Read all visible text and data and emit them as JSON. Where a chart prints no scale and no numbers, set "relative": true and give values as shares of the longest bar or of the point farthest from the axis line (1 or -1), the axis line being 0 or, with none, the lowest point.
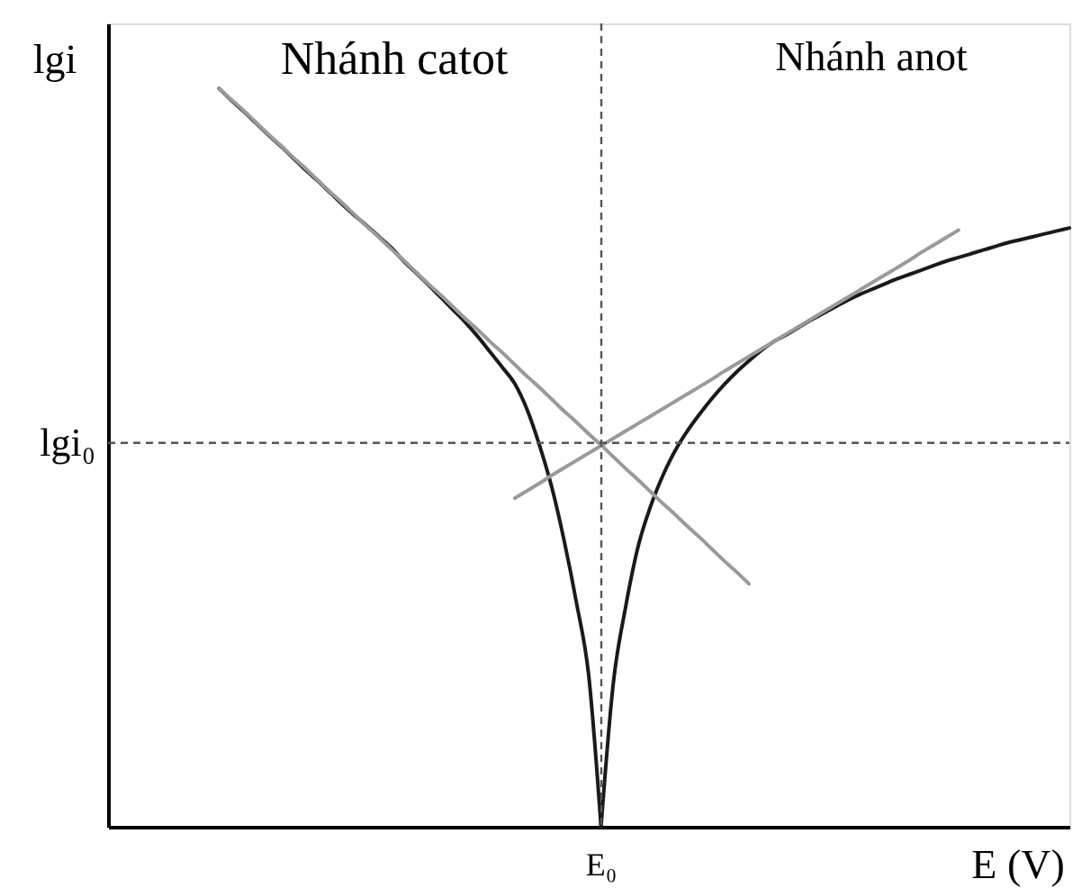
{
  "chart_data": {
    "type": "line",
    "relative": true,
    "xlabel": "E (V)",
    "ylabel": "lgi",
    "annotations": [
      "Nhánh catot",
      "Nhánh anot",
      "E₀"
    ],
    "categories": [
      null,
      null,
      null,
      null,
      null,
      null,
      null,
      null,
      null,
      null,
      null,
      null,
      null,
      null,
      null,
      null,
      null,
      null,
      null,
      null,
      null,
      null,
      null,
      null,
      null,
      null,
      null,
      null,
      null,
      null,
      null,
      null,
      null,
      null,
      null,
      null,
      null,
      null,
      null,
      null,
      null,
      null,
      null,
      null,
      null,
      null,
      null,
      null,
      null,
      null,
      null,
      null,
      null,
      null,
      null,
      null,
      null,
      null,
      null,
      null,
      null,
      null,
      null,
      null,
      null,
      null,
      null,
      null,
      null,
      null,
      null,
      null,
      null,
      null,
      null,
      null,
      null,
      null,
      null
    ],
    "series": [
      {
        "color": "#1a1a1a",
        "values": [
          null,
          null,
          null,
          null,
          null,
          null,
          null,
          null,
          null,
          1.0,
          0.984,
          0.969,
          0.953,
          0.937,
          0.922,
          0.906,
          0.89,
          0.875,
          0.859,
          0.843,
          0.828,
          0.814,
          0.799,
          0.784,
          0.766,
          0.75,
          0.734,
          0.717,
          0.7,
          0.683,
          0.664,
          0.643,
          0.622,
          0.6,
          0.565,
          0.517,
          0.46,
          0.388,
          0.304,
          0.205,
          0,
          null,
          null,
          null,
          null,
          null,
          null,
          null,
          null,
          null,
          null,
          null,
          null,
          null,
          null,
          null,
          null,
          null,
          null,
          null,
          null,
          null,
          null,
          null,
          null,
          null,
          null,
          null,
          null,
          null,
          null,
          null,
          null,
          null,
          null,
          null,
          null,
          null,
          null
        ]
      },
      {
        "color": "#1a1a1a",
        "values": [
          null,
          null,
          null,
          null,
          null,
          null,
          null,
          null,
          null,
          null,
          null,
          null,
          null,
          null,
          null,
          null,
          null,
          null,
          null,
          null,
          null,
          null,
          null,
          null,
          null,
          null,
          null,
          null,
          null,
          null,
          null,
          null,
          null,
          null,
          null,
          null,
          null,
          null,
          null,
          null,
          0,
          0.195,
          0.298,
          0.379,
          0.433,
          0.475,
          0.509,
          0.536,
          0.559,
          0.58,
          0.599,
          0.616,
          0.631,
          0.645,
          0.657,
          0.666,
          0.676,
          0.686,
          0.695,
          0.704,
          0.713,
          0.721,
          0.728,
          0.735,
          0.742,
          0.748,
          0.754,
          0.76,
          0.766,
          0.771,
          0.776,
          0.781,
          0.786,
          0.791,
          0.795,
          0.799,
          0.803,
          0.807,
          0.811
        ]
      },
      {
        "color": "#9a9a9a",
        "values": [
          null,
          null,
          null,
          null,
          null,
          null,
          null,
          null,
          null,
          1.0,
          0.985,
          0.97,
          0.954,
          0.938,
          0.923,
          0.907,
          0.892,
          0.876,
          0.86,
          0.845,
          0.829,
          0.813,
          0.798,
          0.782,
          0.767,
          0.751,
          0.735,
          0.72,
          0.704,
          0.688,
          0.673,
          0.657,
          0.642,
          0.626,
          0.61,
          0.595,
          0.579,
          0.563,
          0.548,
          0.532,
          0.517,
          0.501,
          0.485,
          0.47,
          0.454,
          0.438,
          0.423,
          0.407,
          0.392,
          0.376,
          0.36,
          0.345,
          0.329,
          null,
          null,
          null,
          null,
          null,
          null,
          null,
          null,
          null,
          null,
          null,
          null,
          null,
          null,
          null,
          null,
          null,
          null,
          null,
          null,
          null,
          null,
          null,
          null,
          null,
          null
        ]
      },
      {
        "color": "#9a9a9a",
        "values": [
          null,
          null,
          null,
          null,
          null,
          null,
          null,
          null,
          null,
          null,
          null,
          null,
          null,
          null,
          null,
          null,
          null,
          null,
          null,
          null,
          null,
          null,
          null,
          null,
          null,
          null,
          null,
          null,
          null,
          null,
          null,
          null,
          null,
          0.445,
          0.455,
          0.465,
          0.476,
          0.486,
          0.496,
          0.506,
          0.516,
          0.526,
          0.536,
          0.546,
          0.556,
          0.566,
          0.576,
          0.586,
          0.596,
          0.606,
          0.617,
          0.627,
          0.637,
          0.647,
          0.657,
          0.667,
          0.677,
          0.687,
          0.697,
          0.707,
          0.717,
          0.727,
          0.737,
          0.747,
          0.757,
          0.767,
          0.778,
          0.788,
          0.798,
          0.808,
          null,
          null,
          null,
          null,
          null,
          null,
          null,
          null,
          null
        ]
      }
    ],
    "ref_lines": [
      {
        "axis": "y",
        "value": 0.52,
        "label": "lgi₀",
        "line_style": "dashed",
        "color": "#555555"
      }
    ]
  }
}
